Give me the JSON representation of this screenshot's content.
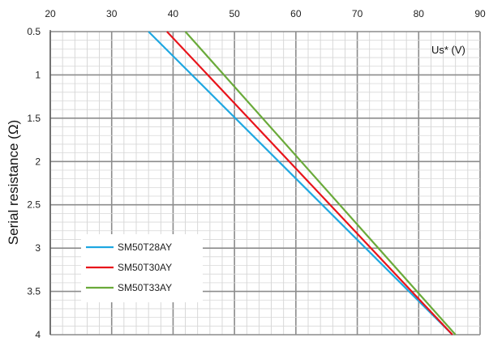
{
  "chart_data": {
    "type": "line",
    "title": "",
    "xlabel": "Us* (V)",
    "ylabel": "Serial resistance (Ω)",
    "x_axis_position": "top",
    "y_axis_inverted": true,
    "xlim": [
      20,
      90
    ],
    "ylim": [
      0.5,
      4
    ],
    "x_ticks": [
      "20",
      "30",
      "40",
      "50",
      "60",
      "70",
      "80",
      "90"
    ],
    "y_ticks": [
      "0.5",
      "1",
      "1.5",
      "2",
      "2.5",
      "3",
      "3.5",
      "4"
    ],
    "grid": true,
    "legend_position": "bottom-left",
    "series": [
      {
        "name": "SM50T28AY",
        "color": "#1EA7E1",
        "points": [
          [
            36,
            0.5
          ],
          [
            85.5,
            4
          ]
        ]
      },
      {
        "name": "SM50T30AY",
        "color": "#E8141B",
        "points": [
          [
            39,
            0.5
          ],
          [
            85.5,
            4
          ]
        ]
      },
      {
        "name": "SM50T33AY",
        "color": "#6AAA3A",
        "points": [
          [
            42,
            0.5
          ],
          [
            86,
            4
          ]
        ]
      }
    ]
  }
}
